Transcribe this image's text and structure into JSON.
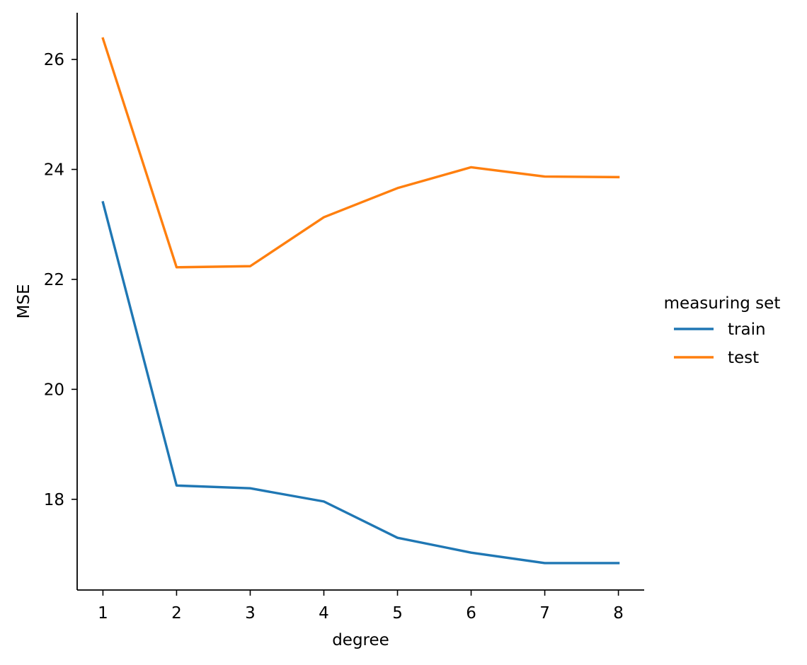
{
  "chart_data": {
    "type": "line",
    "title": "",
    "xlabel": "degree",
    "ylabel": "MSE",
    "x": [
      1,
      2,
      3,
      4,
      5,
      6,
      7,
      8
    ],
    "xlim": [
      0.65,
      8.35
    ],
    "ylim": [
      16.35,
      26.85
    ],
    "xticks": [
      1,
      2,
      3,
      4,
      5,
      6,
      7,
      8
    ],
    "yticks": [
      18,
      20,
      22,
      24,
      26
    ],
    "grid": false,
    "legend": {
      "title": "measuring set",
      "placement": "right"
    },
    "series": [
      {
        "name": "train",
        "color": "#1f77b4",
        "values": [
          23.4,
          18.25,
          18.2,
          17.96,
          17.3,
          17.03,
          16.84,
          16.84
        ]
      },
      {
        "name": "test",
        "color": "#ff7f0e",
        "values": [
          26.38,
          22.22,
          22.24,
          23.13,
          23.66,
          24.04,
          23.87,
          23.86
        ]
      }
    ]
  }
}
